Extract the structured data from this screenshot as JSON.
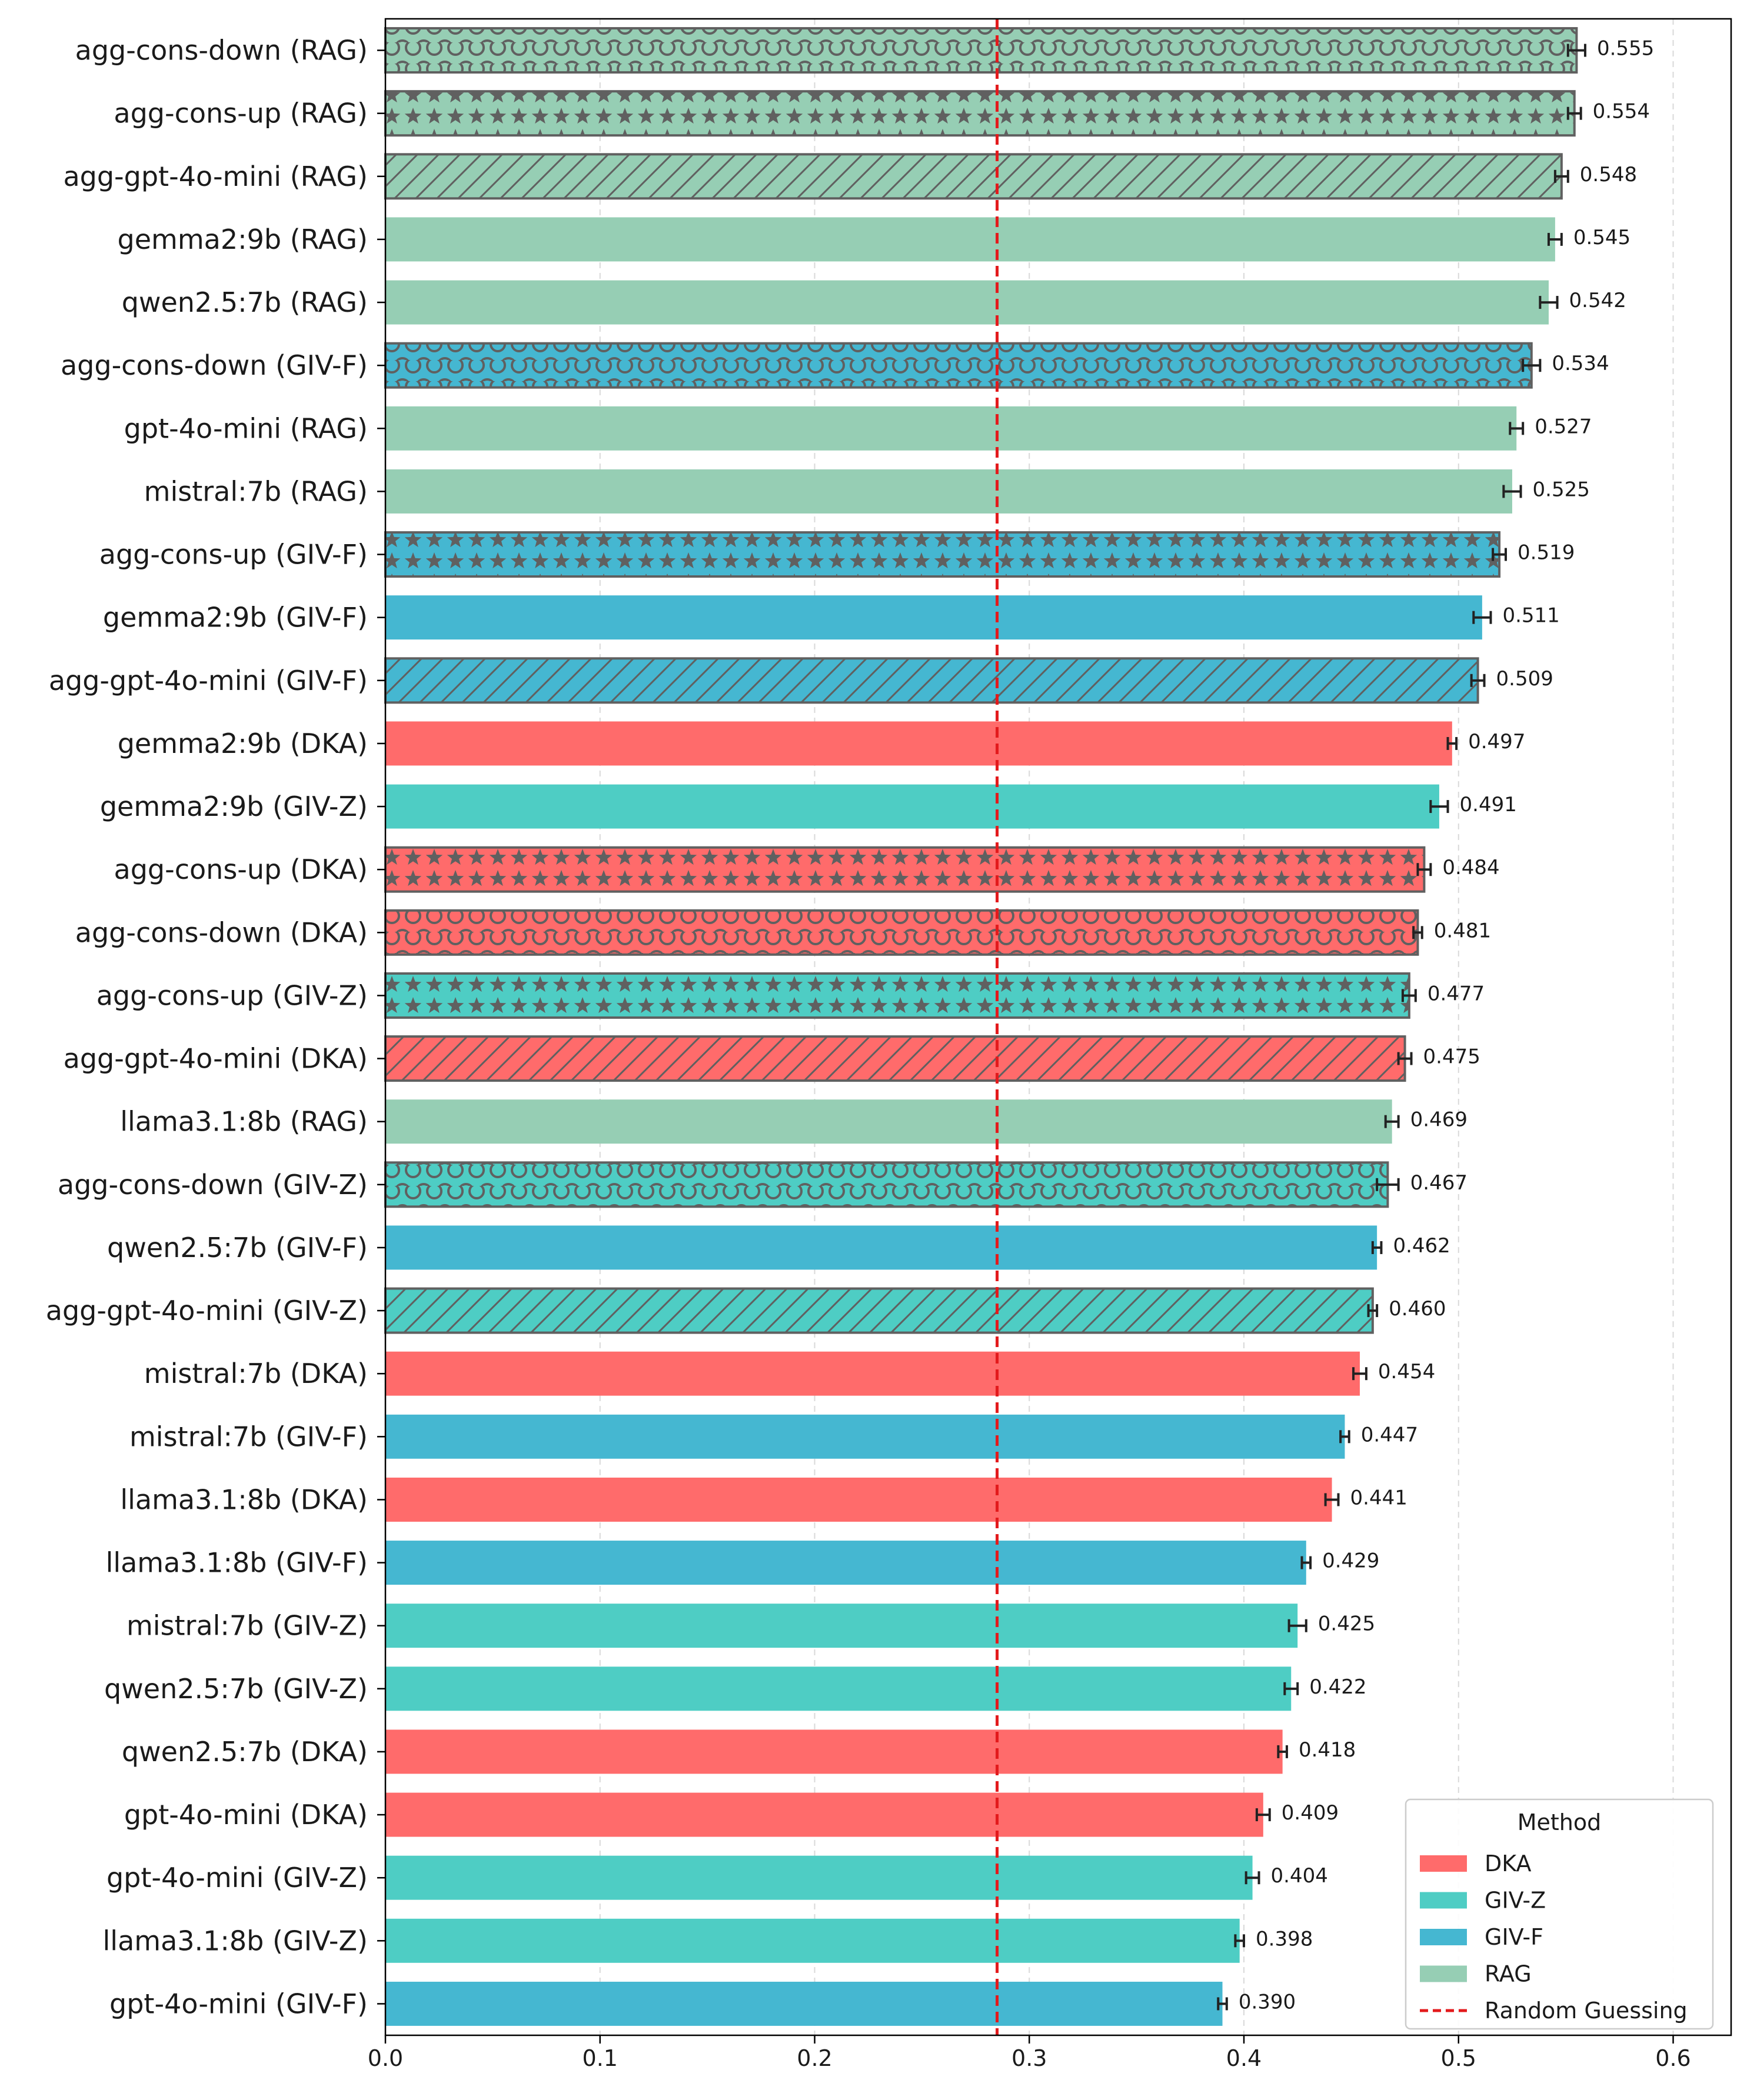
{
  "chart_data": {
    "type": "bar",
    "orientation": "horizontal",
    "categories": [
      "agg-cons-down (RAG)",
      "agg-cons-up (RAG)",
      "agg-gpt-4o-mini (RAG)",
      "gemma2:9b (RAG)",
      "qwen2.5:7b (RAG)",
      "agg-cons-down (GIV-F)",
      "gpt-4o-mini (RAG)",
      "mistral:7b (RAG)",
      "agg-cons-up (GIV-F)",
      "gemma2:9b (GIV-F)",
      "agg-gpt-4o-mini (GIV-F)",
      "gemma2:9b (DKA)",
      "gemma2:9b (GIV-Z)",
      "agg-cons-up (DKA)",
      "agg-cons-down (DKA)",
      "agg-cons-up (GIV-Z)",
      "agg-gpt-4o-mini (DKA)",
      "llama3.1:8b (RAG)",
      "agg-cons-down (GIV-Z)",
      "qwen2.5:7b (GIV-F)",
      "agg-gpt-4o-mini (GIV-Z)",
      "mistral:7b (DKA)",
      "mistral:7b (GIV-F)",
      "llama3.1:8b (DKA)",
      "llama3.1:8b (GIV-F)",
      "mistral:7b (GIV-Z)",
      "qwen2.5:7b (GIV-Z)",
      "qwen2.5:7b (DKA)",
      "gpt-4o-mini (DKA)",
      "gpt-4o-mini (GIV-Z)",
      "llama3.1:8b (GIV-Z)",
      "gpt-4o-mini (GIV-F)"
    ],
    "values": [
      0.555,
      0.554,
      0.548,
      0.545,
      0.542,
      0.534,
      0.527,
      0.525,
      0.519,
      0.511,
      0.509,
      0.497,
      0.491,
      0.484,
      0.481,
      0.477,
      0.475,
      0.469,
      0.467,
      0.462,
      0.46,
      0.454,
      0.447,
      0.441,
      0.429,
      0.425,
      0.422,
      0.418,
      0.409,
      0.404,
      0.398,
      0.39
    ],
    "value_labels": [
      "0.555",
      "0.554",
      "0.548",
      "0.545",
      "0.542",
      "0.534",
      "0.527",
      "0.525",
      "0.519",
      "0.511",
      "0.509",
      "0.497",
      "0.491",
      "0.484",
      "0.481",
      "0.477",
      "0.475",
      "0.469",
      "0.467",
      "0.462",
      "0.460",
      "0.454",
      "0.447",
      "0.441",
      "0.429",
      "0.425",
      "0.422",
      "0.418",
      "0.409",
      "0.404",
      "0.398",
      "0.390"
    ],
    "errors": [
      0.004,
      0.003,
      0.003,
      0.003,
      0.004,
      0.004,
      0.003,
      0.004,
      0.003,
      0.004,
      0.003,
      0.002,
      0.004,
      0.003,
      0.002,
      0.003,
      0.003,
      0.003,
      0.005,
      0.002,
      0.002,
      0.003,
      0.002,
      0.003,
      0.002,
      0.004,
      0.003,
      0.002,
      0.003,
      0.003,
      0.002,
      0.002
    ],
    "methods": [
      "RAG",
      "RAG",
      "RAG",
      "RAG",
      "RAG",
      "GIV-F",
      "RAG",
      "RAG",
      "GIV-F",
      "GIV-F",
      "GIV-F",
      "DKA",
      "GIV-Z",
      "DKA",
      "DKA",
      "GIV-Z",
      "DKA",
      "RAG",
      "GIV-Z",
      "GIV-F",
      "GIV-Z",
      "DKA",
      "GIV-F",
      "DKA",
      "GIV-F",
      "GIV-Z",
      "GIV-Z",
      "DKA",
      "DKA",
      "GIV-Z",
      "GIV-Z",
      "GIV-F"
    ],
    "patterns": [
      "circles",
      "stars",
      "slash",
      "none",
      "none",
      "circles",
      "none",
      "none",
      "stars",
      "none",
      "slash",
      "none",
      "none",
      "stars",
      "circles",
      "stars",
      "slash",
      "none",
      "circles",
      "none",
      "slash",
      "none",
      "none",
      "none",
      "none",
      "none",
      "none",
      "none",
      "none",
      "none",
      "none",
      "none"
    ],
    "xlim": [
      0.0,
      0.627
    ],
    "xticks": [
      0.0,
      0.1,
      0.2,
      0.3,
      0.4,
      0.5,
      0.6
    ],
    "xtick_labels": [
      "0.0",
      "0.1",
      "0.2",
      "0.3",
      "0.4",
      "0.5",
      "0.6"
    ],
    "reference_line": {
      "x": 0.285,
      "label": "Random Guessing",
      "color": "#e31a1c",
      "style": "dashed"
    },
    "grid": {
      "x": true,
      "y": false,
      "style": "dashed"
    },
    "legend": {
      "title": "Method",
      "position": "lower-right",
      "entries": [
        {
          "label": "DKA",
          "color": "#ff6b6b"
        },
        {
          "label": "GIV-Z",
          "color": "#4ecdc4"
        },
        {
          "label": "GIV-F",
          "color": "#45b7d1"
        },
        {
          "label": "RAG",
          "color": "#96ceb4"
        },
        {
          "label": "Random Guessing",
          "color": "#e31a1c",
          "style": "dashed"
        }
      ]
    },
    "colors": {
      "DKA": "#ff6b6b",
      "GIV-Z": "#4ecdc4",
      "GIV-F": "#45b7d1",
      "RAG": "#96ceb4",
      "hatch": "#606060",
      "errorbar": "#222222"
    }
  }
}
